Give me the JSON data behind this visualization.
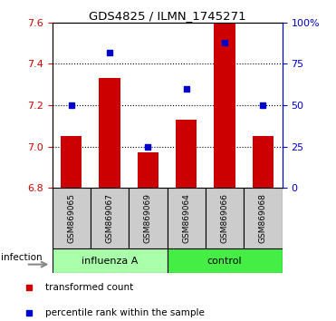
{
  "title": "GDS4825 / ILMN_1745271",
  "samples": [
    "GSM869065",
    "GSM869067",
    "GSM869069",
    "GSM869064",
    "GSM869066",
    "GSM869068"
  ],
  "red_values": [
    7.05,
    7.33,
    6.97,
    7.13,
    7.6,
    7.05
  ],
  "blue_percentiles": [
    50,
    82,
    25,
    60,
    88,
    50
  ],
  "ylim_left": [
    6.8,
    7.6
  ],
  "ylim_right": [
    0,
    100
  ],
  "yticks_left": [
    6.8,
    7.0,
    7.2,
    7.4,
    7.6
  ],
  "yticks_right": [
    0,
    25,
    50,
    75,
    100
  ],
  "baseline": 6.8,
  "bar_color": "#cc0000",
  "dot_color": "#0000cc",
  "group1_label": "influenza A",
  "group2_label": "control",
  "group1_color": "#aaffaa",
  "group2_color": "#44ee44",
  "group_factor_label": "infection",
  "sample_box_color": "#cccccc",
  "legend_red_label": "transformed count",
  "legend_blue_label": "percentile rank within the sample",
  "bar_width": 0.55
}
